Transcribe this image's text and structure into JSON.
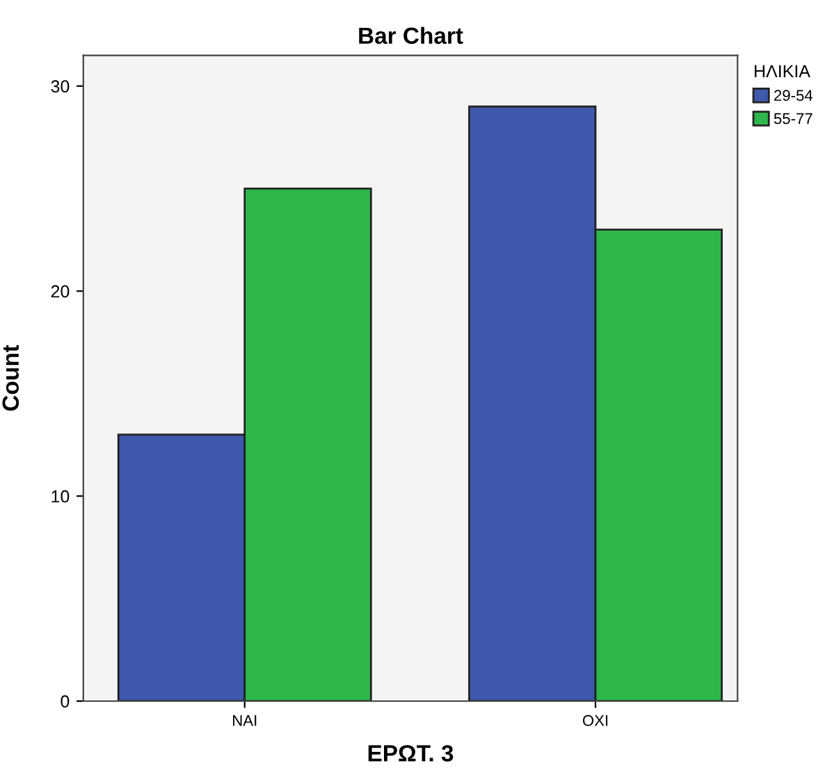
{
  "chart_data": {
    "type": "bar",
    "title": "Bar Chart",
    "xlabel": "ΕΡΩΤ. 3",
    "ylabel": "Count",
    "legend_title": "ΗΛΙΚΙΑ",
    "categories": [
      "ΝΑΙ",
      "ΟΧΙ"
    ],
    "series": [
      {
        "name": "29-54",
        "color": "#3e58ac",
        "values": [
          13,
          29
        ]
      },
      {
        "name": "55-77",
        "color": "#2eb84c",
        "values": [
          25,
          23
        ]
      }
    ],
    "ylim": [
      0,
      31.5
    ],
    "yticks": [
      0,
      10,
      20,
      30
    ],
    "grid": false,
    "legend": "right"
  }
}
